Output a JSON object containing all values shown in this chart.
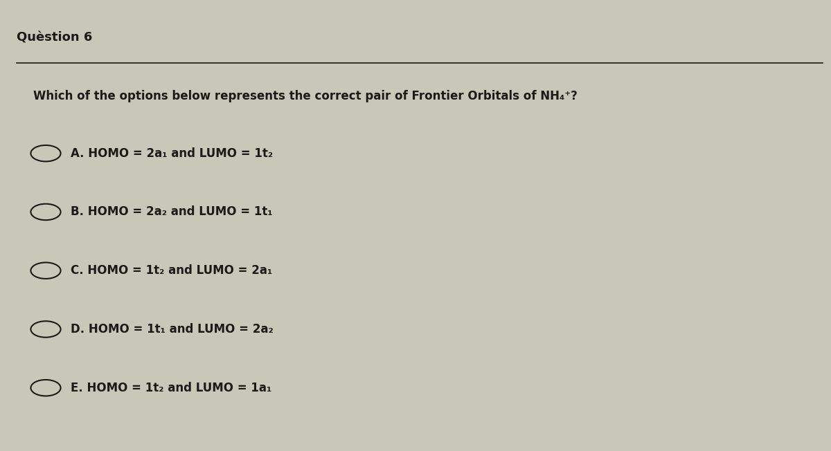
{
  "title": "Quèstion 6",
  "question": "Which of the options below represents the correct pair of Frontier Orbitals of NH₄⁺?",
  "options": [
    "A. HOMO = 2a₁ and LUMO = 1t₂",
    "B. HOMO = 2a₂ and LUMO = 1t₁",
    "C. HOMO = 1t₂ and LUMO = 2a₁",
    "D. HOMO = 1t₁ and LUMO = 2a₂",
    "E. HOMO = 1t₂ and LUMO = 1a₁"
  ],
  "background_color": "#c8c8b8",
  "text_color": "#1a1a1a",
  "title_fontsize": 13,
  "question_fontsize": 12,
  "option_fontsize": 12,
  "fig_width": 12.0,
  "fig_height": 6.52
}
